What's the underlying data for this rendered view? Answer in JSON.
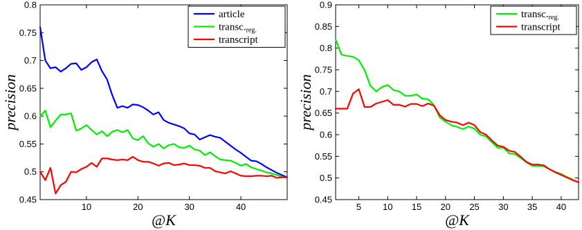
{
  "chart_data": [
    {
      "type": "line",
      "xlabel": "@K",
      "ylabel": "precision",
      "xlim": [
        1,
        49
      ],
      "ylim": [
        0.45,
        0.8
      ],
      "xticks": [
        10,
        20,
        30,
        40
      ],
      "yticks": [
        0.45,
        0.5,
        0.55,
        0.6,
        0.65,
        0.7,
        0.75,
        0.8
      ],
      "ytick_labels": [
        "0.45",
        "0.5",
        "0.55",
        "0.6",
        "0.65",
        "0.7",
        "0.75",
        "0.8"
      ],
      "legend_position": "top-right",
      "x": [
        1,
        2,
        3,
        4,
        5,
        6,
        7,
        8,
        9,
        10,
        11,
        12,
        13,
        14,
        15,
        16,
        17,
        18,
        19,
        20,
        21,
        22,
        23,
        24,
        25,
        26,
        27,
        28,
        29,
        30,
        31,
        32,
        33,
        34,
        35,
        36,
        37,
        38,
        39,
        40,
        41,
        42,
        43,
        44,
        45,
        46,
        47,
        48,
        49
      ],
      "series": [
        {
          "name": "article",
          "sub": "",
          "color": "#0000ff",
          "values": [
            0.76,
            0.7,
            0.686,
            0.688,
            0.68,
            0.686,
            0.694,
            0.695,
            0.683,
            0.688,
            0.697,
            0.702,
            0.681,
            0.666,
            0.638,
            0.615,
            0.618,
            0.615,
            0.621,
            0.62,
            0.616,
            0.61,
            0.603,
            0.607,
            0.593,
            0.588,
            0.585,
            0.582,
            0.578,
            0.569,
            0.567,
            0.558,
            0.562,
            0.566,
            0.563,
            0.561,
            0.554,
            0.547,
            0.54,
            0.534,
            0.527,
            0.52,
            0.519,
            0.514,
            0.508,
            0.503,
            0.498,
            0.494,
            0.49
          ]
        },
        {
          "name": "transc.",
          "sub": "reg.",
          "color": "#00ee00",
          "values": [
            0.6,
            0.61,
            0.58,
            0.592,
            0.603,
            0.603,
            0.605,
            0.574,
            0.578,
            0.584,
            0.575,
            0.567,
            0.573,
            0.564,
            0.572,
            0.575,
            0.571,
            0.575,
            0.56,
            0.557,
            0.564,
            0.551,
            0.545,
            0.55,
            0.542,
            0.548,
            0.55,
            0.544,
            0.543,
            0.547,
            0.54,
            0.538,
            0.53,
            0.535,
            0.528,
            0.522,
            0.521,
            0.52,
            0.516,
            0.511,
            0.514,
            0.508,
            0.505,
            0.502,
            0.499,
            0.497,
            0.494,
            0.491,
            0.489
          ]
        },
        {
          "name": "transcript",
          "sub": "",
          "color": "#ff0000",
          "values": [
            0.5,
            0.485,
            0.507,
            0.461,
            0.476,
            0.482,
            0.5,
            0.499,
            0.505,
            0.509,
            0.516,
            0.509,
            0.524,
            0.524,
            0.522,
            0.521,
            0.522,
            0.521,
            0.527,
            0.521,
            0.518,
            0.518,
            0.515,
            0.511,
            0.515,
            0.516,
            0.512,
            0.513,
            0.515,
            0.512,
            0.512,
            0.511,
            0.507,
            0.507,
            0.501,
            0.499,
            0.497,
            0.501,
            0.497,
            0.493,
            0.492,
            0.492,
            0.493,
            0.493,
            0.492,
            0.493,
            0.489,
            0.49,
            0.49
          ]
        }
      ]
    },
    {
      "type": "line",
      "xlabel": "@K",
      "ylabel": "precision",
      "xlim": [
        1,
        43
      ],
      "ylim": [
        0.45,
        0.9
      ],
      "xticks": [
        5,
        10,
        15,
        20,
        25,
        30,
        35,
        40
      ],
      "yticks": [
        0.45,
        0.5,
        0.55,
        0.6,
        0.65,
        0.7,
        0.75,
        0.8,
        0.85,
        0.9
      ],
      "ytick_labels": [
        "0.45",
        "0.5",
        "0.55",
        "0.6",
        "0.65",
        "0.7",
        "0.75",
        "0.8",
        "0.85",
        "0.9"
      ],
      "legend_position": "top-right",
      "x": [
        1,
        2,
        3,
        4,
        5,
        6,
        7,
        8,
        9,
        10,
        11,
        12,
        13,
        14,
        15,
        16,
        17,
        18,
        19,
        20,
        21,
        22,
        23,
        24,
        25,
        26,
        27,
        28,
        29,
        30,
        31,
        32,
        33,
        34,
        35,
        36,
        37,
        38,
        39,
        40,
        41,
        42,
        43
      ],
      "series": [
        {
          "name": "transc.",
          "sub": "reg.",
          "color": "#00ee00",
          "values": [
            0.82,
            0.785,
            0.782,
            0.78,
            0.772,
            0.749,
            0.713,
            0.7,
            0.71,
            0.715,
            0.703,
            0.7,
            0.69,
            0.69,
            0.693,
            0.683,
            0.682,
            0.668,
            0.64,
            0.63,
            0.622,
            0.618,
            0.613,
            0.619,
            0.614,
            0.6,
            0.596,
            0.583,
            0.57,
            0.57,
            0.557,
            0.555,
            0.546,
            0.536,
            0.528,
            0.528,
            0.527,
            0.52,
            0.514,
            0.509,
            0.502,
            0.496,
            0.49
          ]
        },
        {
          "name": "transcript",
          "sub": "",
          "color": "#ff0000",
          "values": [
            0.66,
            0.66,
            0.66,
            0.695,
            0.705,
            0.664,
            0.664,
            0.672,
            0.676,
            0.68,
            0.669,
            0.669,
            0.665,
            0.671,
            0.671,
            0.666,
            0.672,
            0.667,
            0.645,
            0.634,
            0.63,
            0.628,
            0.622,
            0.628,
            0.622,
            0.606,
            0.6,
            0.587,
            0.575,
            0.572,
            0.563,
            0.56,
            0.549,
            0.537,
            0.531,
            0.531,
            0.529,
            0.52,
            0.513,
            0.507,
            0.501,
            0.495,
            0.49
          ]
        }
      ]
    }
  ]
}
